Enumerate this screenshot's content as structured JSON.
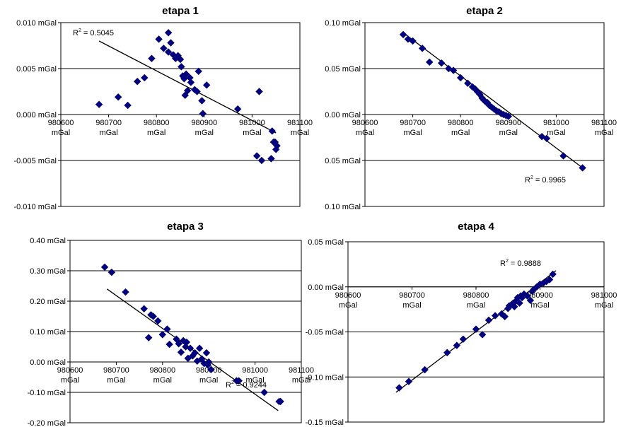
{
  "chart_data": [
    {
      "type": "scatter",
      "title": "etapa 1",
      "x_unit": "mGal",
      "x_ticks": [
        "980600",
        "980700",
        "980800",
        "980900",
        "981000",
        "981100"
      ],
      "xlim": [
        980600,
        981100
      ],
      "y_ticks": [
        "0.010 mGal",
        "0.005 mGal",
        "0.000 mGal",
        "-0.005 mGal",
        "-0.010 mGal"
      ],
      "ylim": [
        -0.01,
        0.01
      ],
      "grid": "horizontal",
      "r2_label": "R² = 0.5045",
      "trendline": [
        [
          980680,
          0.008
        ],
        [
          981050,
          -0.002
        ]
      ],
      "points": [
        [
          980680,
          0.0011
        ],
        [
          980720,
          0.0019
        ],
        [
          980740,
          0.001
        ],
        [
          980760,
          0.0036
        ],
        [
          980775,
          0.004
        ],
        [
          980790,
          0.0061
        ],
        [
          980805,
          0.0082
        ],
        [
          980815,
          0.0072
        ],
        [
          980825,
          0.0089
        ],
        [
          980825,
          0.0068
        ],
        [
          980830,
          0.0078
        ],
        [
          980835,
          0.0065
        ],
        [
          980840,
          0.0061
        ],
        [
          980845,
          0.0064
        ],
        [
          980850,
          0.006
        ],
        [
          980852,
          0.0052
        ],
        [
          980855,
          0.0042
        ],
        [
          980858,
          0.0039
        ],
        [
          980860,
          0.0021
        ],
        [
          980862,
          0.0044
        ],
        [
          980865,
          0.0026
        ],
        [
          980870,
          0.004
        ],
        [
          980872,
          0.0035
        ],
        [
          980880,
          0.0027
        ],
        [
          980885,
          0.0025
        ],
        [
          980888,
          0.0047
        ],
        [
          980895,
          0.0015
        ],
        [
          980897,
          0.0001
        ],
        [
          980905,
          0.0032
        ],
        [
          980970,
          0.0006
        ],
        [
          981010,
          -0.0045
        ],
        [
          981015,
          0.0025
        ],
        [
          981020,
          -0.005
        ],
        [
          981040,
          -0.0048
        ],
        [
          981042,
          -0.0018
        ],
        [
          981045,
          -0.003
        ],
        [
          981048,
          -0.003
        ],
        [
          981050,
          -0.0038
        ],
        [
          981052,
          -0.0034
        ]
      ]
    },
    {
      "type": "scatter",
      "title": "etapa 2",
      "x_unit": "mGal",
      "x_ticks": [
        "980600",
        "980700",
        "980800",
        "980900",
        "981000",
        "981100"
      ],
      "xlim": [
        980600,
        981100
      ],
      "y_ticks": [
        "0.10 mGal",
        "0.05 mGal",
        "0.00 mGal",
        "0.05 mGal",
        "0.10 mGal"
      ],
      "ylim": [
        -0.1,
        0.1
      ],
      "grid": "horizontal",
      "r2_label": "R² = 0.9965",
      "trendline": [
        [
          980680,
          0.089
        ],
        [
          981055,
          -0.058
        ]
      ],
      "points": [
        [
          980680,
          0.087
        ],
        [
          980690,
          0.082
        ],
        [
          980700,
          0.08
        ],
        [
          980720,
          0.072
        ],
        [
          980735,
          0.057
        ],
        [
          980760,
          0.056
        ],
        [
          980775,
          0.05
        ],
        [
          980785,
          0.048
        ],
        [
          980800,
          0.04
        ],
        [
          980815,
          0.034
        ],
        [
          980825,
          0.03
        ],
        [
          980830,
          0.028
        ],
        [
          980835,
          0.025
        ],
        [
          980840,
          0.022
        ],
        [
          980845,
          0.018
        ],
        [
          980848,
          0.016
        ],
        [
          980852,
          0.014
        ],
        [
          980856,
          0.013
        ],
        [
          980860,
          0.01
        ],
        [
          980865,
          0.008
        ],
        [
          980870,
          0.006
        ],
        [
          980875,
          0.004
        ],
        [
          980880,
          0.003
        ],
        [
          980885,
          0.001
        ],
        [
          980890,
          0.0
        ],
        [
          980895,
          -0.001
        ],
        [
          980900,
          -0.002
        ],
        [
          980970,
          -0.024
        ],
        [
          980980,
          -0.026
        ],
        [
          981015,
          -0.045
        ],
        [
          981055,
          -0.058
        ]
      ]
    },
    {
      "type": "scatter",
      "title": "etapa 3",
      "x_unit": "mGal",
      "x_ticks": [
        "980600",
        "980700",
        "980800",
        "980900",
        "981000",
        "981100"
      ],
      "xlim": [
        980600,
        981100
      ],
      "y_ticks": [
        "0.40 mGal",
        "0.30 mGal",
        "0.20 mGal",
        "0.10 mGal",
        "0.00 mGal",
        "-0.10 mGal",
        "-0.20 mGal"
      ],
      "ylim": [
        -0.2,
        0.4
      ],
      "grid": "horizontal",
      "r2_label": "R² = 0.9244",
      "trendline": [
        [
          980680,
          0.24
        ],
        [
          981050,
          -0.16
        ]
      ],
      "points": [
        [
          980675,
          0.312
        ],
        [
          980690,
          0.295
        ],
        [
          980720,
          0.23
        ],
        [
          980760,
          0.175
        ],
        [
          980770,
          0.08
        ],
        [
          980775,
          0.155
        ],
        [
          980780,
          0.15
        ],
        [
          980790,
          0.135
        ],
        [
          980800,
          0.09
        ],
        [
          980810,
          0.108
        ],
        [
          980815,
          0.058
        ],
        [
          980830,
          0.075
        ],
        [
          980835,
          0.06
        ],
        [
          980840,
          0.032
        ],
        [
          980845,
          0.07
        ],
        [
          980850,
          0.05
        ],
        [
          980852,
          0.065
        ],
        [
          980855,
          0.012
        ],
        [
          980860,
          0.045
        ],
        [
          980865,
          0.02
        ],
        [
          980870,
          0.03
        ],
        [
          980875,
          0.003
        ],
        [
          980880,
          0.045
        ],
        [
          980885,
          0.01
        ],
        [
          980890,
          -0.005
        ],
        [
          980895,
          0.03
        ],
        [
          980898,
          -0.01
        ],
        [
          980900,
          0.0
        ],
        [
          980905,
          -0.025
        ],
        [
          980960,
          -0.062
        ],
        [
          980965,
          -0.062
        ],
        [
          981020,
          -0.1
        ],
        [
          981052,
          -0.13
        ],
        [
          981055,
          -0.13
        ]
      ]
    },
    {
      "type": "scatter",
      "title": "etapa 4",
      "x_unit": "mGal",
      "x_ticks": [
        "980600",
        "980700",
        "980800",
        "980900",
        "981000"
      ],
      "xlim": [
        980600,
        981000
      ],
      "y_ticks": [
        "0.05 mGal",
        "0.00 mGal",
        "-0.05 mGal",
        "-0.10 mGal",
        "-0.15 mGal"
      ],
      "ylim": [
        -0.15,
        0.05
      ],
      "grid": "horizontal",
      "r2_label": "R² = 0.9888",
      "trendline": [
        [
          980675,
          -0.117
        ],
        [
          980925,
          0.018
        ]
      ],
      "points": [
        [
          980680,
          -0.112
        ],
        [
          980695,
          -0.105
        ],
        [
          980720,
          -0.092
        ],
        [
          980755,
          -0.073
        ],
        [
          980770,
          -0.065
        ],
        [
          980780,
          -0.058
        ],
        [
          980800,
          -0.047
        ],
        [
          980810,
          -0.053
        ],
        [
          980820,
          -0.037
        ],
        [
          980830,
          -0.032
        ],
        [
          980840,
          -0.03
        ],
        [
          980845,
          -0.033
        ],
        [
          980850,
          -0.024
        ],
        [
          980852,
          -0.021
        ],
        [
          980855,
          -0.02
        ],
        [
          980858,
          -0.018
        ],
        [
          980860,
          -0.022
        ],
        [
          980862,
          -0.016
        ],
        [
          980865,
          -0.012
        ],
        [
          980868,
          -0.018
        ],
        [
          980870,
          -0.01
        ],
        [
          980872,
          -0.012
        ],
        [
          980875,
          -0.008
        ],
        [
          980880,
          -0.01
        ],
        [
          980885,
          -0.015
        ],
        [
          980888,
          -0.005
        ],
        [
          980890,
          -0.003
        ],
        [
          980895,
          0.0
        ],
        [
          980900,
          0.003
        ],
        [
          980905,
          0.004
        ],
        [
          980910,
          0.006
        ],
        [
          980915,
          0.008
        ],
        [
          980920,
          0.014
        ]
      ]
    }
  ],
  "style": {
    "marker_color": "#000080",
    "line_color": "#000000",
    "grid_color": "#000000"
  }
}
